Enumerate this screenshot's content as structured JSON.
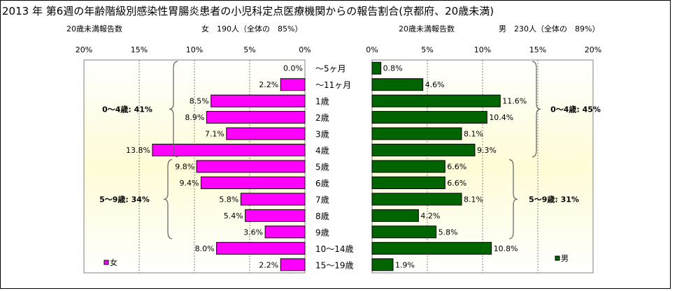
{
  "title": "2013 年 第6週の年齢階級別感染性胃腸炎患者の小児科定点医療機関からの報告割合(京都府、20歳未満)",
  "categories": [
    "～5ヶ月",
    "～11ヶ月",
    "1歳",
    "2歳",
    "3歳",
    "4歳",
    "5歳",
    "6歳",
    "7歳",
    "8歳",
    "9歳",
    "10～14歳",
    "15～19歳"
  ],
  "chart_data": [
    {
      "type": "bar",
      "orientation": "horizontal-reversed",
      "panel": "female",
      "header_left": "20歳未満報告数",
      "header_right": "女　190人（全体の　85%）",
      "legend": "女",
      "color": "#ff00ff",
      "xlim": [
        0,
        20
      ],
      "xticks": [
        "20%",
        "15%",
        "10%",
        "5%",
        "0%"
      ],
      "categories": [
        "～5ヶ月",
        "～11ヶ月",
        "1歳",
        "2歳",
        "3歳",
        "4歳",
        "5歳",
        "6歳",
        "7歳",
        "8歳",
        "9歳",
        "10～14歳",
        "15～19歳"
      ],
      "values": [
        0.0,
        2.2,
        8.5,
        8.9,
        7.1,
        13.8,
        9.8,
        9.4,
        5.8,
        5.4,
        3.6,
        8.0,
        2.2
      ],
      "labels": [
        "0.0%",
        "2.2%",
        "8.5%",
        "8.9%",
        "7.1%",
        "13.8%",
        "9.8%",
        "9.4%",
        "5.8%",
        "5.4%",
        "3.6%",
        "8.0%",
        "2.2%"
      ],
      "annotations": [
        {
          "text": "0～4歳: 41%",
          "from": 0,
          "to": 5
        },
        {
          "text": "5～9歳: 34%",
          "from": 6,
          "to": 10
        }
      ]
    },
    {
      "type": "bar",
      "orientation": "horizontal",
      "panel": "male",
      "header_left": "20歳未満報告数",
      "header_right": "男　230人（全体の　89%）",
      "legend": "男",
      "color": "#006400",
      "xlim": [
        0,
        20
      ],
      "xticks": [
        "0%",
        "5%",
        "10%",
        "15%",
        "20%"
      ],
      "categories": [
        "～5ヶ月",
        "～11ヶ月",
        "1歳",
        "2歳",
        "3歳",
        "4歳",
        "5歳",
        "6歳",
        "7歳",
        "8歳",
        "9歳",
        "10～14歳",
        "15～19歳"
      ],
      "values": [
        0.8,
        4.6,
        11.6,
        10.4,
        8.1,
        9.3,
        6.6,
        6.6,
        8.1,
        4.2,
        5.8,
        10.8,
        1.9
      ],
      "labels": [
        "0.8%",
        "4.6%",
        "11.6%",
        "10.4%",
        "8.1%",
        "9.3%",
        "6.6%",
        "6.6%",
        "8.1%",
        "4.2%",
        "5.8%",
        "10.8%",
        "1.9%"
      ],
      "annotations": [
        {
          "text": "0～4歳: 45%",
          "from": 0,
          "to": 5
        },
        {
          "text": "5～9歳: 31%",
          "from": 6,
          "to": 10
        }
      ]
    }
  ]
}
